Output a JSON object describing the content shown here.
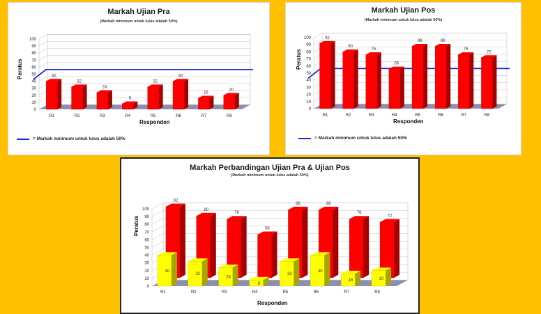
{
  "colors": {
    "background": "#ffc000",
    "red_bar": "#ff0000",
    "yellow_bar": "#ffff00",
    "threshold_line": "#1c28d6"
  },
  "chart_data": [
    {
      "type": "bar",
      "title": "Markah Ujian Pra",
      "subtitle": "(Markah minimum untuk lulus adalah 50%)",
      "xlabel": "Responden",
      "ylabel": "Peratus",
      "ylim": [
        0,
        100
      ],
      "yticks": [
        "0",
        "10",
        "20",
        "30",
        "40",
        "50",
        "60",
        "70",
        "80",
        "90",
        "100"
      ],
      "categories": [
        "R1",
        "R2",
        "R3",
        "R4",
        "R5",
        "R6",
        "R7",
        "R8"
      ],
      "series": [
        {
          "values": [
            40,
            32,
            24,
            8,
            32,
            40,
            16,
            20
          ],
          "color": "#ff0000"
        }
      ],
      "threshold": 50,
      "legend_text": "= Markah minimum untuk lulus adalah 50%",
      "legend_position": "bottom-left"
    },
    {
      "type": "bar",
      "title": "Markah Ujian Pos",
      "subtitle": "(Markah minimum untuk lulus adalah 50%)",
      "xlabel": "Responden",
      "ylabel": "Peratus",
      "ylim": [
        0,
        100
      ],
      "yticks": [
        "0",
        "10",
        "20",
        "30",
        "40",
        "50",
        "60",
        "70",
        "80",
        "90",
        "100"
      ],
      "categories": [
        "R1",
        "R2",
        "R3",
        "R4",
        "R5",
        "R6",
        "R7",
        "R8"
      ],
      "series": [
        {
          "values": [
            92,
            80,
            76,
            56,
            88,
            88,
            76,
            72
          ],
          "color": "#ff0000"
        }
      ],
      "threshold": 50,
      "legend_text": "= Markah minimum untuk lulus adalah 50%",
      "legend_position": "bottom-left"
    },
    {
      "type": "bar",
      "title": "Markah Perbandingan Ujian Pra & Ujian Pos",
      "subtitle": "(Markah minimum untuk lulus adalah 50%)",
      "xlabel": "Responden",
      "ylabel": "Peratus",
      "ylim": [
        0,
        100
      ],
      "yticks": [
        "0",
        "10",
        "20",
        "30",
        "40",
        "50",
        "60",
        "70",
        "80",
        "90",
        "100"
      ],
      "categories": [
        "R1",
        "R2",
        "R3",
        "R4",
        "R5",
        "R6",
        "R7",
        "R8"
      ],
      "series": [
        {
          "values": [
            92,
            80,
            76,
            56,
            88,
            88,
            76,
            72
          ],
          "color": "#ff0000"
        },
        {
          "values": [
            40,
            32,
            24,
            8,
            32,
            40,
            16,
            20
          ],
          "color": "#ffff00"
        }
      ]
    }
  ]
}
